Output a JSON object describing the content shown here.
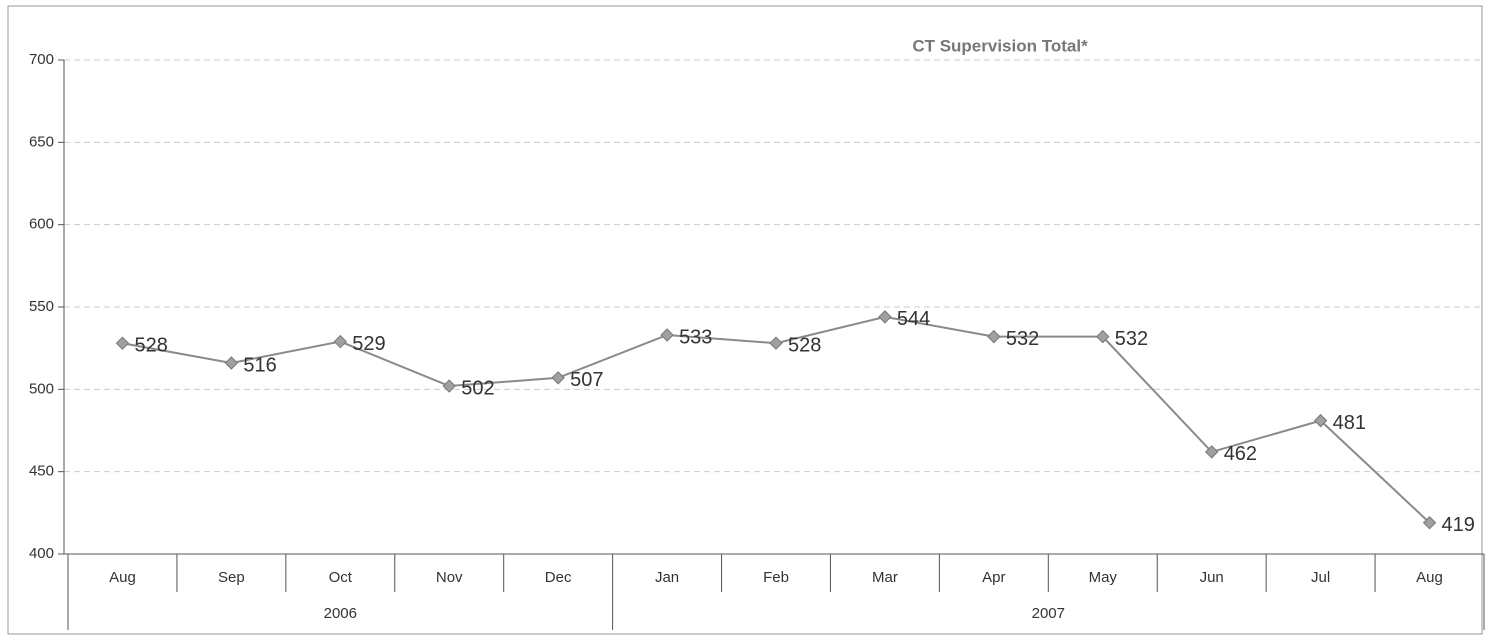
{
  "chart_data": {
    "type": "line",
    "title": "CT Supervision Total*",
    "categories": [
      "Aug",
      "Sep",
      "Oct",
      "Nov",
      "Dec",
      "Jan",
      "Feb",
      "Mar",
      "Apr",
      "May",
      "Jun",
      "Jul",
      "Aug"
    ],
    "x_groups": [
      {
        "label": "2006",
        "span": 5
      },
      {
        "label": "2007",
        "span": 8
      }
    ],
    "series": [
      {
        "name": "CT Supervision Total",
        "color": "#8a8a8a",
        "marker_color": "#a0a0a0",
        "values": [
          528,
          516,
          529,
          502,
          507,
          533,
          528,
          544,
          532,
          532,
          462,
          481,
          419
        ]
      }
    ],
    "ylim": [
      400,
      700
    ],
    "yticks": [
      400,
      450,
      500,
      550,
      600,
      650,
      700
    ],
    "grid": true
  }
}
